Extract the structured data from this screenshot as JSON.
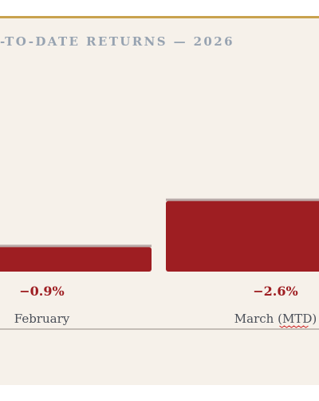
{
  "chart_data": {
    "type": "bar",
    "title": "-TO-DATE RETURNS — 2026",
    "categories": [
      "February",
      "March (MTD)"
    ],
    "values": [
      -0.9,
      -2.6
    ],
    "value_labels": [
      "−0.9%",
      "−2.6%"
    ],
    "bar_direction": "downward from baseline",
    "grid": false,
    "colors": {
      "bar": "#9e1e22",
      "bar_edge": "#b9aaa8",
      "value_text": "#9e1e22",
      "category_text": "#4a4f58",
      "title_text": "#97a3b1",
      "accent_rule": "#c9a24e",
      "baseline": "#c4bdb6",
      "background": "#f6f1ea"
    }
  }
}
